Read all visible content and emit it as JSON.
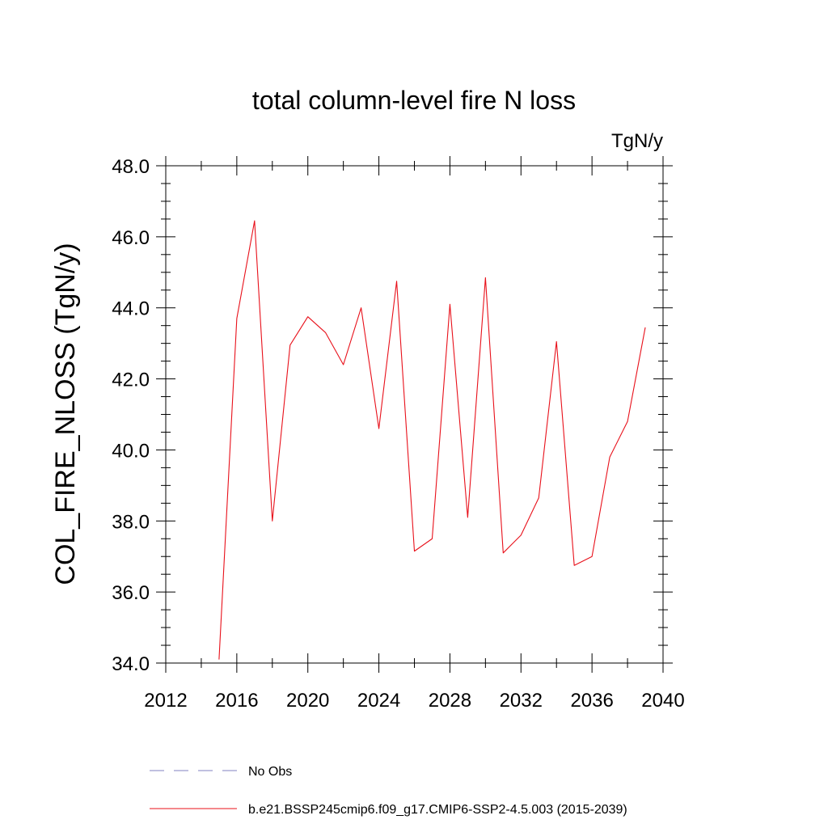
{
  "chart_data": {
    "type": "line",
    "title": "total column-level fire N loss",
    "units": "TgN/y",
    "xlabel": "",
    "ylabel": "COL_FIRE_NLOSS  (TgN/y)",
    "xlim": [
      2012,
      2040
    ],
    "ylim": [
      34.0,
      48.0
    ],
    "x_ticks": [
      2012,
      2016,
      2020,
      2024,
      2028,
      2032,
      2036,
      2040
    ],
    "x_tick_labels": [
      "2012",
      "2016",
      "2020",
      "2024",
      "2028",
      "2032",
      "2036",
      "2040"
    ],
    "y_ticks": [
      34,
      36,
      38,
      40,
      42,
      44,
      46,
      48
    ],
    "y_tick_labels": [
      "34.0",
      "36.0",
      "38.0",
      "40.0",
      "42.0",
      "44.0",
      "46.0",
      "48.0"
    ],
    "grid": false,
    "legend_position": "bottom",
    "series": [
      {
        "name": "No Obs",
        "color": "#8080c0",
        "style": "dashed",
        "x": [],
        "values": []
      },
      {
        "name": "b.e21.BSSP245cmip6.f09_g17.CMIP6-SSP2-4.5.003 (2015-2039)",
        "color": "#e8101a",
        "style": "solid",
        "x": [
          2015,
          2016,
          2017,
          2018,
          2019,
          2020,
          2021,
          2022,
          2023,
          2024,
          2025,
          2026,
          2027,
          2028,
          2029,
          2030,
          2031,
          2032,
          2033,
          2034,
          2035,
          2036,
          2037,
          2038,
          2039
        ],
        "values": [
          34.1,
          43.7,
          46.45,
          38.0,
          42.95,
          43.75,
          43.3,
          42.4,
          44.0,
          40.6,
          44.75,
          37.15,
          37.5,
          44.1,
          38.1,
          44.85,
          37.1,
          37.6,
          38.65,
          43.05,
          36.75,
          37.0,
          39.8,
          40.8,
          43.45
        ]
      }
    ]
  }
}
